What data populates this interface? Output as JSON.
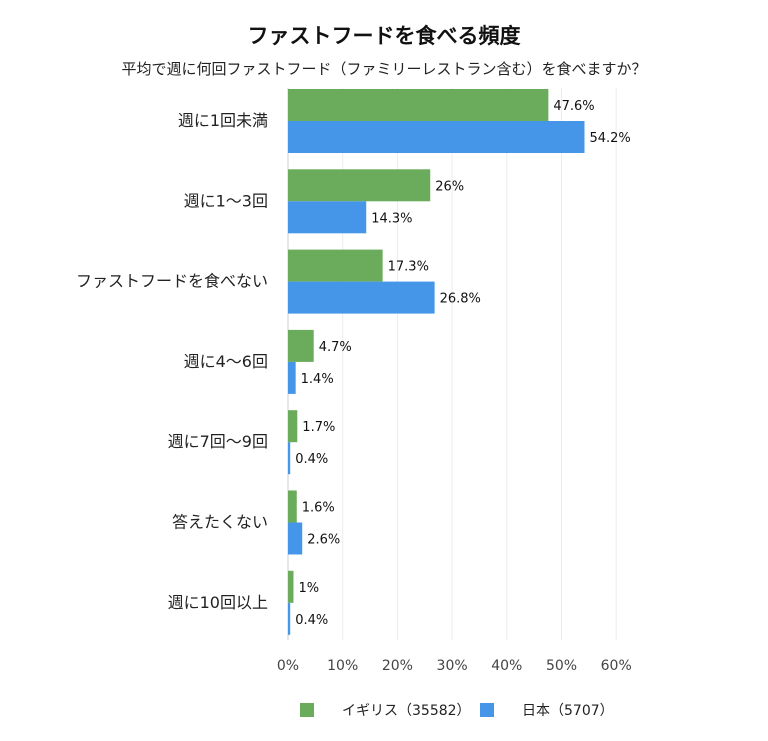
{
  "chart_data": {
    "type": "bar",
    "orientation": "horizontal",
    "title": "ファストフードを食べる頻度",
    "subtitle": "平均で週に何回ファストフード（ファミリーレストラン含む）を食べますか？",
    "categories": [
      "週に1回未満",
      "週に1〜3回",
      "ファストフードを食べない",
      "週に4〜6回",
      "週に7回〜9回",
      "答えたくない",
      "週に10回以上"
    ],
    "series": [
      {
        "name": "イギリス（35582）",
        "color": "#6aac5b",
        "values": [
          47.6,
          26,
          17.3,
          4.7,
          1.7,
          1.6,
          1
        ],
        "labels": [
          "47.6%",
          "26%",
          "17.3%",
          "4.7%",
          "1.7%",
          "1.6%",
          "1%"
        ]
      },
      {
        "name": "日本（5707）",
        "color": "#4596e9",
        "values": [
          54.2,
          14.3,
          26.8,
          1.4,
          0.4,
          2.6,
          0.4
        ],
        "labels": [
          "54.2%",
          "14.3%",
          "26.8%",
          "1.4%",
          "0.4%",
          "2.6%",
          "0.4%"
        ]
      }
    ],
    "xlim": [
      0,
      60
    ],
    "xticks": [
      "0%",
      "10%",
      "20%",
      "30%",
      "40%",
      "50%",
      "60%"
    ],
    "grid": true,
    "legend_position": "bottom"
  }
}
